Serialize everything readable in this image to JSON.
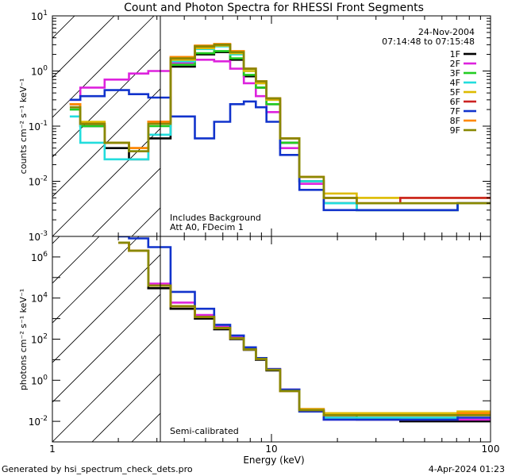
{
  "header": {
    "title": "Count and Photon Spectra for RHESSI Front Segments"
  },
  "top_panel": {
    "date": "24-Nov-2004",
    "time_range": "07:14:48 to 07:15:48",
    "note_line1": "Includes Background",
    "note_line2": "Att A0, FDecim 1",
    "ylabel": "counts cm⁻² s⁻¹ keV⁻¹"
  },
  "bottom_panel": {
    "note": "Semi-calibrated",
    "ylabel": "photons cm⁻² s⁻¹ keV⁻¹"
  },
  "footer": {
    "generated_by": "Generated by hsi_spectrum_check_dets.pro",
    "timestamp": "4-Apr-2024 01:23"
  },
  "chart_data": [
    {
      "panel": "top",
      "type": "line",
      "title": "Count and Photon Spectra for RHESSI Front Segments",
      "xlabel": "Energy (keV)",
      "ylabel": "counts cm^-2 s^-1 keV^-1",
      "xscale": "log",
      "yscale": "log",
      "xlim": [
        1,
        100
      ],
      "ylim": [
        0.001,
        10
      ],
      "x_ticks": [
        "1",
        "10",
        "100"
      ],
      "y_ticks": [
        "10-3",
        "10-2",
        "10-1",
        "100",
        "101"
      ],
      "x": [
        1.2,
        1.5,
        2,
        2.5,
        3,
        4,
        5,
        6,
        7,
        8,
        9,
        10,
        12,
        15,
        20,
        30,
        50,
        100
      ],
      "series": [
        {
          "name": "1F",
          "color": "#000000",
          "values": [
            0.25,
            0.1,
            0.04,
            0.025,
            0.06,
            1.2,
            2.0,
            2.2,
            1.6,
            0.8,
            0.5,
            0.25,
            0.05,
            0.01,
            0.004,
            0.003,
            0.003,
            0.004
          ]
        },
        {
          "name": "2F",
          "color": "#dd22dd",
          "values": [
            0.3,
            0.5,
            0.7,
            0.9,
            1.0,
            1.4,
            1.6,
            1.5,
            1.1,
            0.6,
            0.35,
            0.18,
            0.04,
            0.009,
            0.004,
            0.003,
            0.003,
            0.004
          ]
        },
        {
          "name": "3F",
          "color": "#22cc22",
          "values": [
            0.2,
            0.1,
            0.05,
            0.035,
            0.1,
            1.3,
            2.1,
            2.3,
            1.7,
            0.85,
            0.5,
            0.25,
            0.05,
            0.01,
            0.004,
            0.003,
            0.003,
            0.004
          ]
        },
        {
          "name": "4F",
          "color": "#22dddd",
          "values": [
            0.15,
            0.05,
            0.025,
            0.025,
            0.07,
            1.5,
            2.5,
            2.8,
            2.0,
            1.0,
            0.6,
            0.3,
            0.06,
            0.01,
            0.004,
            0.003,
            0.003,
            0.004
          ]
        },
        {
          "name": "5F",
          "color": "#ddbb00",
          "values": [
            0.25,
            0.12,
            0.05,
            0.04,
            0.12,
            1.6,
            2.6,
            2.9,
            2.1,
            1.0,
            0.6,
            0.3,
            0.06,
            0.012,
            0.006,
            0.005,
            0.005,
            0.005
          ]
        },
        {
          "name": "6F",
          "color": "#cc2222",
          "values": [
            0.25,
            0.11,
            0.05,
            0.04,
            0.12,
            1.7,
            2.8,
            3.0,
            2.2,
            1.1,
            0.65,
            0.32,
            0.06,
            0.012,
            0.005,
            0.004,
            0.005,
            0.005
          ]
        },
        {
          "name": "7F",
          "color": "#1133cc",
          "values": [
            0.3,
            0.35,
            0.45,
            0.38,
            0.33,
            0.15,
            0.06,
            0.12,
            0.25,
            0.28,
            0.22,
            0.12,
            0.03,
            0.007,
            0.003,
            0.003,
            0.003,
            0.004
          ]
        },
        {
          "name": "8F",
          "color": "#ff8800",
          "values": [
            0.25,
            0.11,
            0.05,
            0.04,
            0.12,
            1.8,
            2.9,
            3.1,
            2.3,
            1.1,
            0.65,
            0.32,
            0.06,
            0.012,
            0.005,
            0.004,
            0.004,
            0.004
          ]
        },
        {
          "name": "9F",
          "color": "#888800",
          "values": [
            0.22,
            0.11,
            0.05,
            0.035,
            0.11,
            1.7,
            2.8,
            3.0,
            2.2,
            1.1,
            0.65,
            0.32,
            0.06,
            0.012,
            0.005,
            0.004,
            0.004,
            0.004
          ]
        }
      ]
    },
    {
      "panel": "bottom",
      "type": "line",
      "xlabel": "Energy (keV)",
      "ylabel": "photons cm^-2 s^-1 keV^-1",
      "xscale": "log",
      "yscale": "log",
      "xlim": [
        1,
        100
      ],
      "ylim": [
        0.001,
        10000000
      ],
      "x_ticks": [
        "1",
        "10",
        "100"
      ],
      "y_ticks": [
        "10-2",
        "100",
        "102",
        "104",
        "106"
      ],
      "x": [
        2,
        2.5,
        3,
        4,
        5,
        6,
        7,
        8,
        9,
        10,
        12,
        15,
        20,
        30,
        50,
        100
      ],
      "series": [
        {
          "name": "1F",
          "color": "#000000",
          "values": [
            5000000,
            2000000,
            30000,
            3000,
            1000,
            300,
            100,
            30,
            10,
            3,
            0.3,
            0.03,
            0.015,
            0.012,
            0.01,
            0.01
          ]
        },
        {
          "name": "2F",
          "color": "#dd22dd",
          "values": [
            5000000,
            2000000,
            50000,
            6000,
            1500,
            400,
            120,
            35,
            12,
            3.5,
            0.35,
            0.04,
            0.012,
            0.012,
            0.012,
            0.012
          ]
        },
        {
          "name": "3F",
          "color": "#22cc22",
          "values": [
            5000000,
            2000000,
            40000,
            4000,
            1200,
            350,
            110,
            32,
            11,
            3.2,
            0.3,
            0.035,
            0.02,
            0.015,
            0.015,
            0.02
          ]
        },
        {
          "name": "4F",
          "color": "#22dddd",
          "values": [
            5000000,
            2000000,
            40000,
            4000,
            1200,
            350,
            110,
            32,
            11,
            3.2,
            0.3,
            0.03,
            0.015,
            0.015,
            0.015,
            0.02
          ]
        },
        {
          "name": "5F",
          "color": "#ddbb00",
          "values": [
            5000000,
            2000000,
            40000,
            4000,
            1200,
            350,
            110,
            32,
            11,
            3.2,
            0.3,
            0.04,
            0.025,
            0.025,
            0.025,
            0.03
          ]
        },
        {
          "name": "6F",
          "color": "#cc2222",
          "values": [
            5000000,
            2000000,
            40000,
            4000,
            1200,
            350,
            110,
            32,
            11,
            3.2,
            0.3,
            0.035,
            0.02,
            0.02,
            0.02,
            0.02
          ]
        },
        {
          "name": "7F",
          "color": "#1133cc",
          "values": [
            10000000,
            8000000,
            3000000,
            20000,
            3000,
            500,
            150,
            40,
            12,
            3.5,
            0.35,
            0.03,
            0.012,
            0.012,
            0.012,
            0.015
          ]
        },
        {
          "name": "8F",
          "color": "#ff8800",
          "values": [
            5000000,
            2000000,
            40000,
            4000,
            1200,
            350,
            110,
            32,
            11,
            3.2,
            0.3,
            0.035,
            0.02,
            0.02,
            0.02,
            0.025
          ]
        },
        {
          "name": "9F",
          "color": "#888800",
          "values": [
            5000000,
            2000000,
            40000,
            4000,
            1200,
            350,
            110,
            32,
            11,
            3.2,
            0.3,
            0.035,
            0.02,
            0.02,
            0.02,
            0.02
          ]
        }
      ]
    }
  ]
}
